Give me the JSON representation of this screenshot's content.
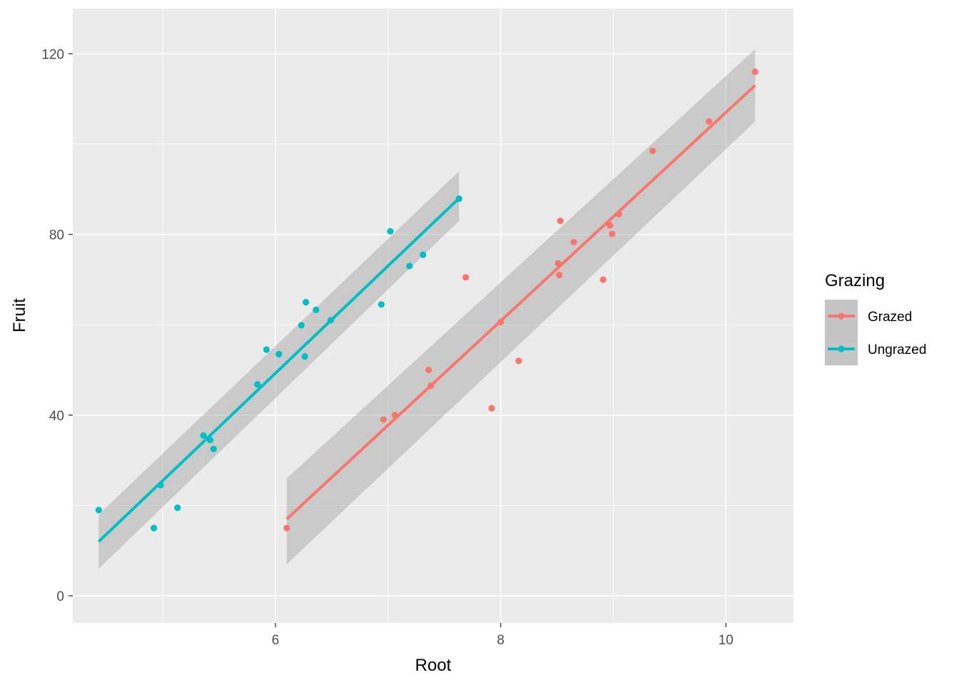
{
  "chart_data": {
    "type": "scatter",
    "x_label": "Root",
    "y_label": "Fruit",
    "xlim": [
      4.2,
      10.6
    ],
    "ylim": [
      -6,
      130
    ],
    "x_ticks": [
      6,
      8,
      10
    ],
    "y_ticks": [
      0,
      40,
      80,
      120
    ],
    "grid": true,
    "legend": {
      "title": "Grazing",
      "position": "right"
    },
    "series": [
      {
        "name": "Grazed",
        "color": "#F8766D",
        "points": [
          [
            6.1,
            15.0
          ],
          [
            6.96,
            39.0
          ],
          [
            7.06,
            40.0
          ],
          [
            7.36,
            50.0
          ],
          [
            7.38,
            46.5
          ],
          [
            7.69,
            70.5
          ],
          [
            7.92,
            41.5
          ],
          [
            8.0,
            60.6
          ],
          [
            8.16,
            52.0
          ],
          [
            8.51,
            73.6
          ],
          [
            8.52,
            71.0
          ],
          [
            8.53,
            83.0
          ],
          [
            8.65,
            78.3
          ],
          [
            8.91,
            70.0
          ],
          [
            8.97,
            82.0
          ],
          [
            8.99,
            80.1
          ],
          [
            9.05,
            84.5
          ],
          [
            9.35,
            98.5
          ],
          [
            9.85,
            105.0
          ],
          [
            10.26,
            116.0
          ]
        ],
        "fit": {
          "x": [
            6.1,
            10.26
          ],
          "y": [
            17.0,
            113.0
          ],
          "se_lower": [
            7.0,
            105.0
          ],
          "se_upper": [
            26.0,
            121.0
          ]
        }
      },
      {
        "name": "Ungrazed",
        "color": "#00BFC4",
        "points": [
          [
            4.43,
            19.0
          ],
          [
            4.92,
            15.0
          ],
          [
            4.98,
            24.5
          ],
          [
            5.13,
            19.5
          ],
          [
            5.36,
            35.5
          ],
          [
            5.42,
            34.5
          ],
          [
            5.45,
            32.5
          ],
          [
            5.84,
            46.8
          ],
          [
            5.92,
            54.5
          ],
          [
            6.03,
            53.5
          ],
          [
            6.23,
            59.9
          ],
          [
            6.26,
            53.0
          ],
          [
            6.27,
            65.0
          ],
          [
            6.36,
            63.3
          ],
          [
            6.49,
            61.0
          ],
          [
            6.94,
            64.5
          ],
          [
            7.02,
            80.7
          ],
          [
            7.19,
            73.0
          ],
          [
            7.31,
            75.5
          ],
          [
            7.63,
            87.9
          ]
        ],
        "fit": {
          "x": [
            4.43,
            7.63
          ],
          "y": [
            12.0,
            88.0
          ],
          "se_lower": [
            6.0,
            83.0
          ],
          "se_upper": [
            18.0,
            94.0
          ]
        }
      }
    ]
  }
}
